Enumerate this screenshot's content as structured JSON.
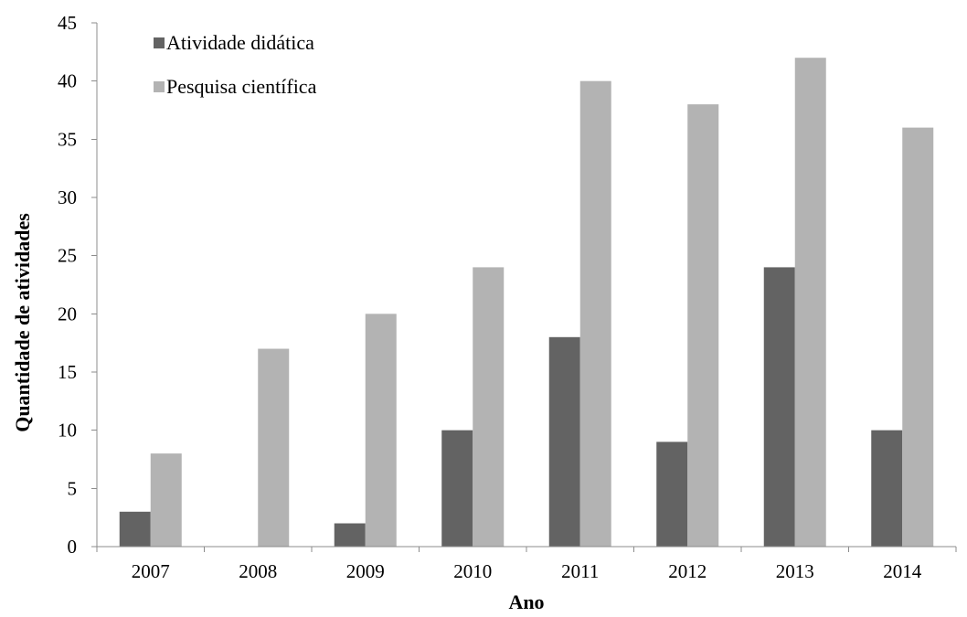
{
  "chart_data": {
    "type": "bar",
    "title": "",
    "xlabel": "Ano",
    "ylabel": "Quantidade de atividades",
    "categories": [
      "2007",
      "2008",
      "2009",
      "2010",
      "2011",
      "2012",
      "2013",
      "2014"
    ],
    "series": [
      {
        "name": "Atividade didática",
        "color": "#636363",
        "values": [
          3,
          0,
          2,
          10,
          18,
          9,
          24,
          10
        ]
      },
      {
        "name": "Pesquisa científica",
        "color": "#b3b3b3",
        "values": [
          8,
          17,
          20,
          24,
          40,
          38,
          42,
          36
        ]
      }
    ],
    "ylim": [
      0,
      45
    ],
    "yticks": [
      0,
      5,
      10,
      15,
      20,
      25,
      30,
      35,
      40,
      45
    ],
    "grid": false,
    "legend_position": "top-left"
  }
}
